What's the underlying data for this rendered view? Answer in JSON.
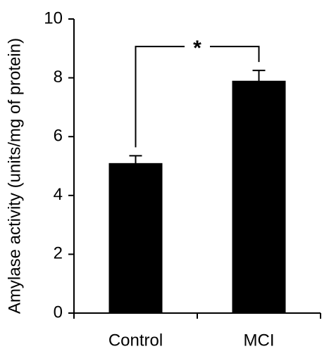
{
  "chart_data": {
    "type": "bar",
    "y_label": "Amylase activity (units/mg of protein)",
    "categories": [
      "Control",
      "MCI"
    ],
    "values": [
      5.1,
      7.9
    ],
    "errors": [
      0.25,
      0.35
    ],
    "color": "#000000",
    "annotation": "*",
    "ylim": [
      0,
      10
    ],
    "yticks": [
      0,
      2,
      4,
      6,
      8,
      10
    ],
    "grid": false
  }
}
